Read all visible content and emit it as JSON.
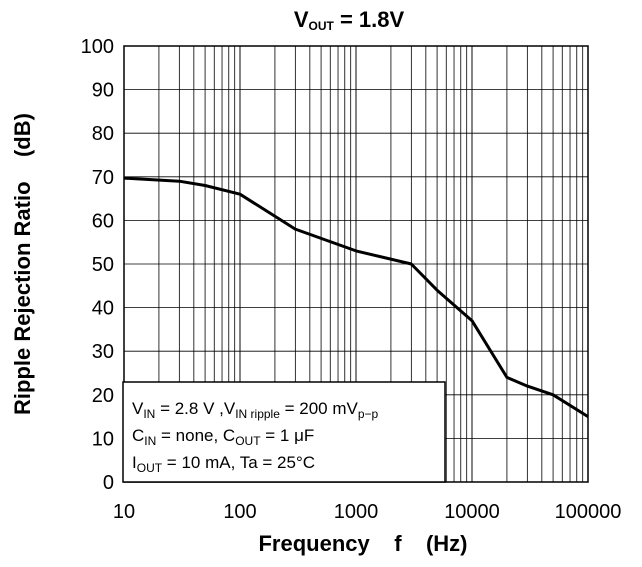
{
  "chart_data": {
    "type": "line",
    "title": {
      "main": "V",
      "sub": "OUT",
      "rest": " = 1.8V"
    },
    "xlabel": "Frequency    f    (Hz)",
    "ylabel": "Ripple Rejection Ratio    (dB)",
    "x_scale": "log",
    "xlim": [
      10,
      100000
    ],
    "ylim": [
      0,
      100
    ],
    "grid": true,
    "x_ticks": [
      {
        "value": 10,
        "label": "10"
      },
      {
        "value": 100,
        "label": "100"
      },
      {
        "value": 1000,
        "label": "1000"
      },
      {
        "value": 10000,
        "label": "10000"
      },
      {
        "value": 100000,
        "label": "100000"
      }
    ],
    "y_ticks": [
      {
        "value": 0,
        "label": "0"
      },
      {
        "value": 10,
        "label": "10"
      },
      {
        "value": 20,
        "label": "20"
      },
      {
        "value": 30,
        "label": "30"
      },
      {
        "value": 40,
        "label": "40"
      },
      {
        "value": 50,
        "label": "50"
      },
      {
        "value": 60,
        "label": "60"
      },
      {
        "value": 70,
        "label": "70"
      },
      {
        "value": 80,
        "label": "80"
      },
      {
        "value": 90,
        "label": "90"
      },
      {
        "value": 100,
        "label": "100"
      }
    ],
    "series": [
      {
        "color": "#000000",
        "x": [
          10,
          30,
          50,
          100,
          300,
          1000,
          3000,
          5000,
          10000,
          20000,
          30000,
          50000,
          100000
        ],
        "y": [
          69.7,
          69.0,
          68.0,
          66.0,
          58.0,
          53.0,
          50.0,
          44.0,
          37.0,
          24.0,
          22.0,
          20.0,
          15.0
        ]
      }
    ],
    "annotation": {
      "line1": [
        {
          "t": "V"
        },
        {
          "t": "IN",
          "sub": true
        },
        {
          "t": " = 2.8 V ,V"
        },
        {
          "t": "IN ripple",
          "sub": true
        },
        {
          "t": " = 200 mV"
        },
        {
          "t": "p−p",
          "sub": true
        }
      ],
      "line2": [
        {
          "t": "C"
        },
        {
          "t": "IN",
          "sub": true
        },
        {
          "t": " = none, C"
        },
        {
          "t": "OUT",
          "sub": true
        },
        {
          "t": " = 1 μF"
        }
      ],
      "line3": [
        {
          "t": "I"
        },
        {
          "t": "OUT",
          "sub": true
        },
        {
          "t": " = 10 mA, Ta = 25°C"
        }
      ]
    }
  }
}
